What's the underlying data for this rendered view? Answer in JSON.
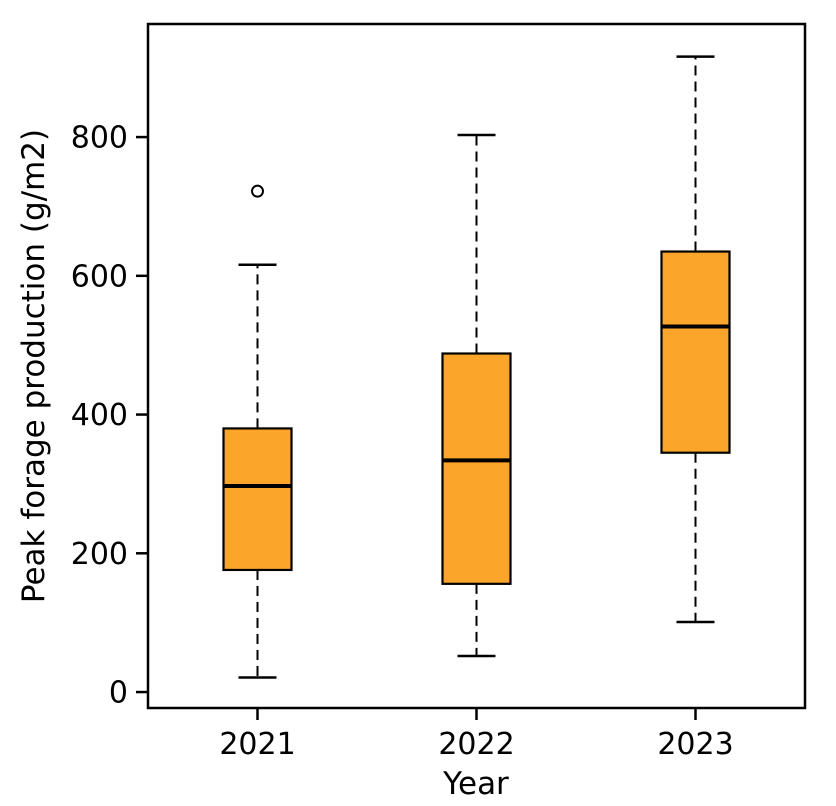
{
  "figure": {
    "background_color": "#FFFFFF",
    "text_color": "#000000"
  },
  "chart_data": {
    "type": "boxplot",
    "title": "",
    "xlabel": "Year",
    "ylabel": "Peak forage production (g/m2)",
    "categories": [
      "2021",
      "2022",
      "2023"
    ],
    "yticks": [
      0,
      200,
      400,
      600,
      800
    ],
    "ylim": [
      -23,
      963
    ],
    "grid": false,
    "legend": "none",
    "box_fill_color": "#FBA62B",
    "box_edge_color": "#000000",
    "median_color": "#000000",
    "whisker_color": "#000000",
    "whisker_linestyle": "dashed",
    "outlier_marker": "open-circle",
    "series": [
      {
        "category": "2021",
        "whisker_low": 21,
        "q1": 176,
        "median": 297,
        "q3": 380,
        "whisker_high": 616,
        "outliers": [
          722
        ]
      },
      {
        "category": "2022",
        "whisker_low": 52,
        "q1": 156,
        "median": 334,
        "q3": 488,
        "whisker_high": 803,
        "outliers": []
      },
      {
        "category": "2023",
        "whisker_low": 101,
        "q1": 345,
        "median": 527,
        "q3": 635,
        "whisker_high": 916,
        "outliers": []
      }
    ]
  }
}
